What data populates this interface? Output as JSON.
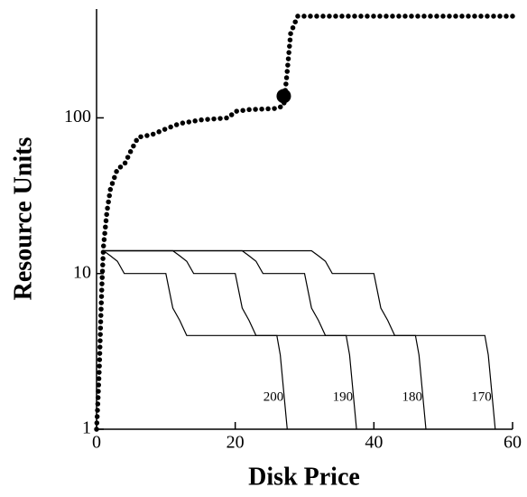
{
  "chart_data": {
    "type": "line",
    "x_label": "Disk Price",
    "y_label": "Resource Units",
    "xlim": [
      0,
      60
    ],
    "ylim": [
      1,
      500
    ],
    "log_y": true,
    "xticks": [
      0,
      20,
      40,
      60
    ],
    "yticks": [
      1,
      10,
      100
    ],
    "demand": {
      "x": [
        0,
        0.2,
        0.4,
        0.6,
        0.8,
        1,
        1.5,
        2,
        3,
        4,
        5,
        6,
        8,
        10,
        12,
        15,
        19,
        20,
        22,
        26,
        27,
        27.5,
        28,
        29,
        60
      ],
      "values": [
        1,
        1.5,
        2.5,
        5,
        9,
        15,
        25,
        35,
        47,
        50,
        62,
        75,
        78,
        85,
        92,
        97,
        100,
        110,
        113,
        115,
        120,
        200,
        350,
        450,
        450
      ],
      "color": "#000000"
    },
    "marker": {
      "x": 27,
      "value": 138
    },
    "series": [
      {
        "name": "200",
        "color": "#000000",
        "x": [
          1,
          2,
          3,
          4,
          10,
          11,
          12,
          13,
          26,
          26.5,
          27.5
        ],
        "values": [
          14,
          13,
          12,
          10,
          10,
          6,
          5,
          4,
          4,
          3,
          1
        ]
      },
      {
        "name": "190",
        "color": "#000000",
        "x": [
          1,
          11,
          12,
          13,
          14,
          20,
          21,
          22,
          23,
          36,
          36.5,
          37.5
        ],
        "values": [
          14,
          14,
          13,
          12,
          10,
          10,
          6,
          5,
          4,
          4,
          3,
          1
        ]
      },
      {
        "name": "180",
        "color": "#000000",
        "x": [
          1,
          21,
          22,
          23,
          24,
          30,
          31,
          32,
          33,
          46,
          46.5,
          47.5
        ],
        "values": [
          14,
          14,
          13,
          12,
          10,
          10,
          6,
          5,
          4,
          4,
          3,
          1
        ]
      },
      {
        "name": "170",
        "color": "#000000",
        "x": [
          1,
          31,
          32,
          33,
          34,
          40,
          41,
          42,
          43,
          56,
          56.5,
          57.5
        ],
        "values": [
          14,
          14,
          13,
          12,
          10,
          10,
          6,
          5,
          4,
          4,
          3,
          1
        ]
      }
    ]
  }
}
